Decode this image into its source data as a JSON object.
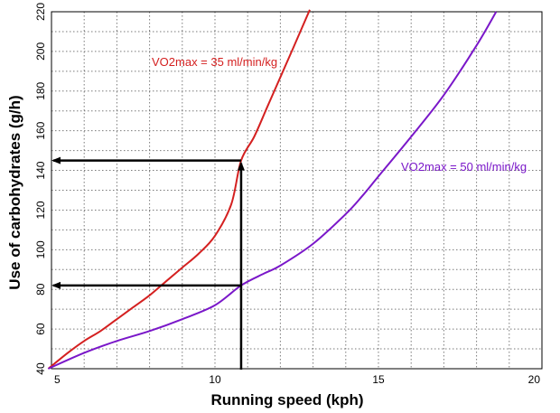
{
  "chart_data": {
    "type": "line",
    "xlabel": "Running speed (kph)",
    "ylabel": "Use of carbohydrates (g/h)",
    "xlim": [
      5,
      20
    ],
    "ylim": [
      40,
      220
    ],
    "x_ticks": [
      5,
      10,
      15,
      20
    ],
    "y_ticks": [
      40,
      60,
      80,
      100,
      120,
      140,
      160,
      180,
      200,
      220
    ],
    "grid": true,
    "series": [
      {
        "name": "VO2max = 35 ml/min/kg",
        "color": "#d42020",
        "x": [
          4.9,
          5.5,
          6.0,
          6.5,
          7.0,
          7.5,
          8.0,
          8.5,
          9.0,
          9.5,
          10.0,
          10.5,
          10.8,
          11.2,
          11.6,
          12.0,
          12.4,
          12.9
        ],
        "y": [
          40,
          48,
          54,
          59,
          65,
          71,
          77,
          84,
          91,
          98,
          107,
          123,
          145,
          157,
          172,
          187,
          202,
          221
        ]
      },
      {
        "name": "VO2max = 50 ml/min/kg",
        "color": "#7a17c9",
        "x": [
          4.9,
          6.0,
          7.0,
          8.0,
          9.0,
          10.0,
          10.8,
          11.5,
          12.0,
          13.0,
          14.0,
          14.5,
          15.0,
          16.0,
          17.0,
          18.0,
          18.6
        ],
        "y": [
          40,
          48,
          54,
          59,
          65,
          72,
          82,
          88,
          92,
          103,
          118,
          127,
          137,
          157,
          178,
          203,
          220
        ]
      }
    ],
    "annotations": {
      "label_35": "VO2max = 35 ml/min/kg",
      "label_50": "VO2max = 50 ml/min/kg"
    },
    "arrows": {
      "speed_x": 10.8,
      "carb_35": 145,
      "carb_50": 82
    }
  }
}
